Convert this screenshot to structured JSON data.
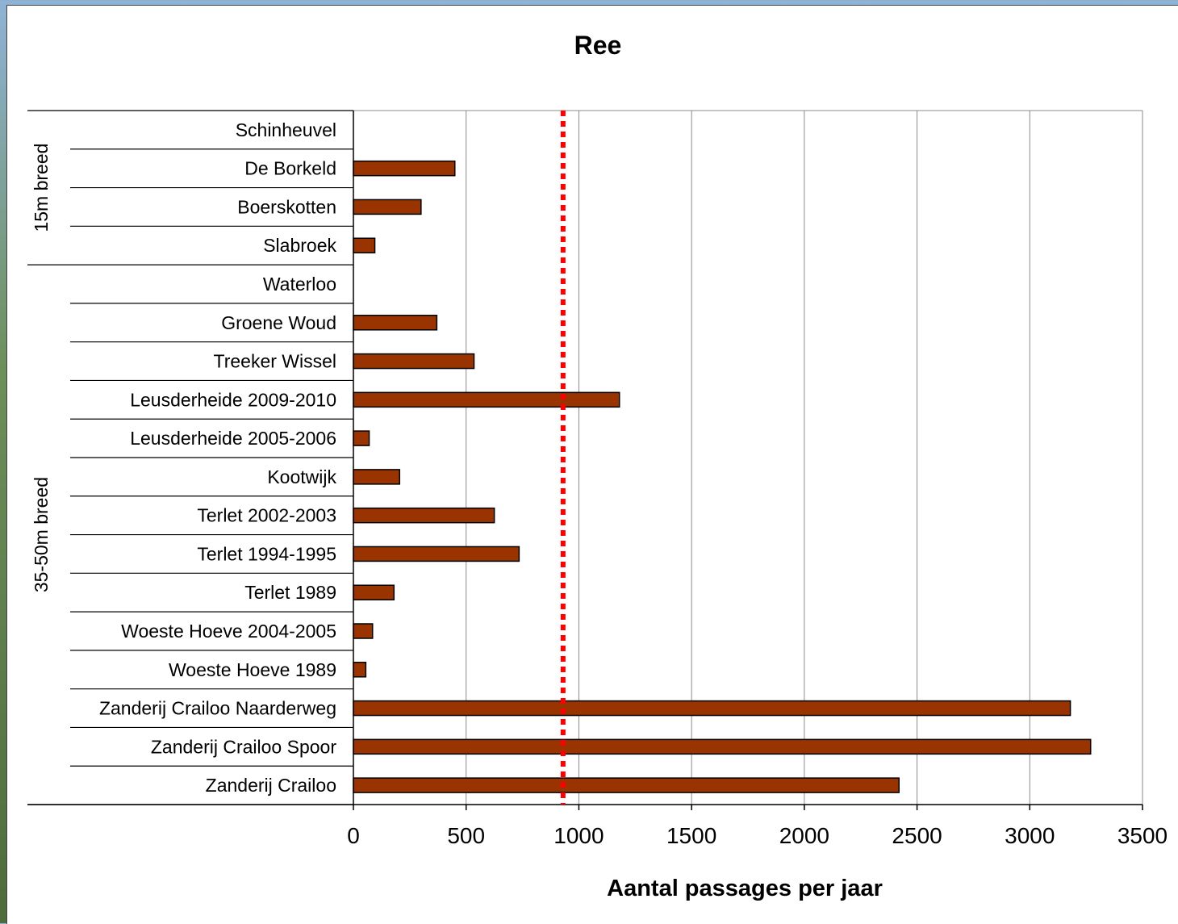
{
  "chart_data": {
    "type": "bar",
    "orientation": "horizontal",
    "title": "Ree",
    "xlabel": "Aantal passages per jaar",
    "xlim": [
      0,
      3500
    ],
    "xticks": [
      0,
      500,
      1000,
      1500,
      2000,
      2500,
      3000,
      3500
    ],
    "grid": "vertical",
    "bar_color": "#993300",
    "reference_line": {
      "value": 930,
      "color": "#ff0000",
      "style": "dotted"
    },
    "groups": [
      {
        "label": "15m breed",
        "start": 0,
        "end": 3
      },
      {
        "label": "35-50m breed",
        "start": 4,
        "end": 17
      }
    ],
    "categories": [
      "Schinheuvel",
      "De Borkeld",
      "Boerskotten",
      "Slabroek",
      "Waterloo",
      "Groene Woud",
      "Treeker Wissel",
      "Leusderheide 2009-2010",
      "Leusderheide 2005-2006",
      "Kootwijk",
      "Terlet 2002-2003",
      "Terlet 1994-1995",
      "Terlet 1989",
      "Woeste Hoeve 2004-2005",
      "Woeste Hoeve 1989",
      "Zanderij Crailoo Naarderweg",
      "Zanderij Crailoo Spoor",
      "Zanderij Crailoo"
    ],
    "values": [
      0,
      450,
      300,
      95,
      0,
      370,
      535,
      1180,
      70,
      205,
      625,
      735,
      180,
      85,
      55,
      3180,
      3270,
      2420
    ]
  }
}
